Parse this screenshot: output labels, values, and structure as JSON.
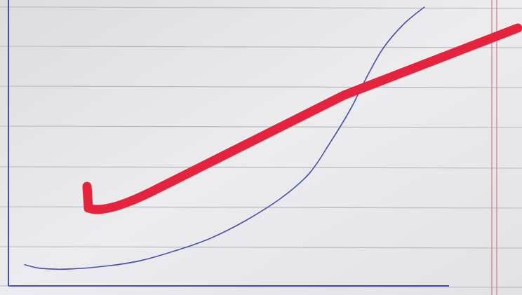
{
  "chart_data": {
    "type": "line",
    "x": [
      3.7,
      7.6,
      14,
      22,
      29.9,
      37.9,
      45.9,
      53.8,
      61.8,
      68.2,
      72.9,
      77.7,
      80.9,
      84.9,
      89.6,
      94.4
    ],
    "values": [
      7.4,
      6.1,
      5.9,
      6.9,
      8.8,
      12.3,
      16.7,
      22.8,
      30.6,
      39.2,
      49.8,
      62,
      71.8,
      82.8,
      91.4,
      97.5
    ],
    "color": "#4a50b0",
    "xlim": [
      0,
      100
    ],
    "ylim": [
      0,
      100
    ],
    "xticks": [],
    "yticks": [],
    "grid": false,
    "tick_labels": false
  }
}
